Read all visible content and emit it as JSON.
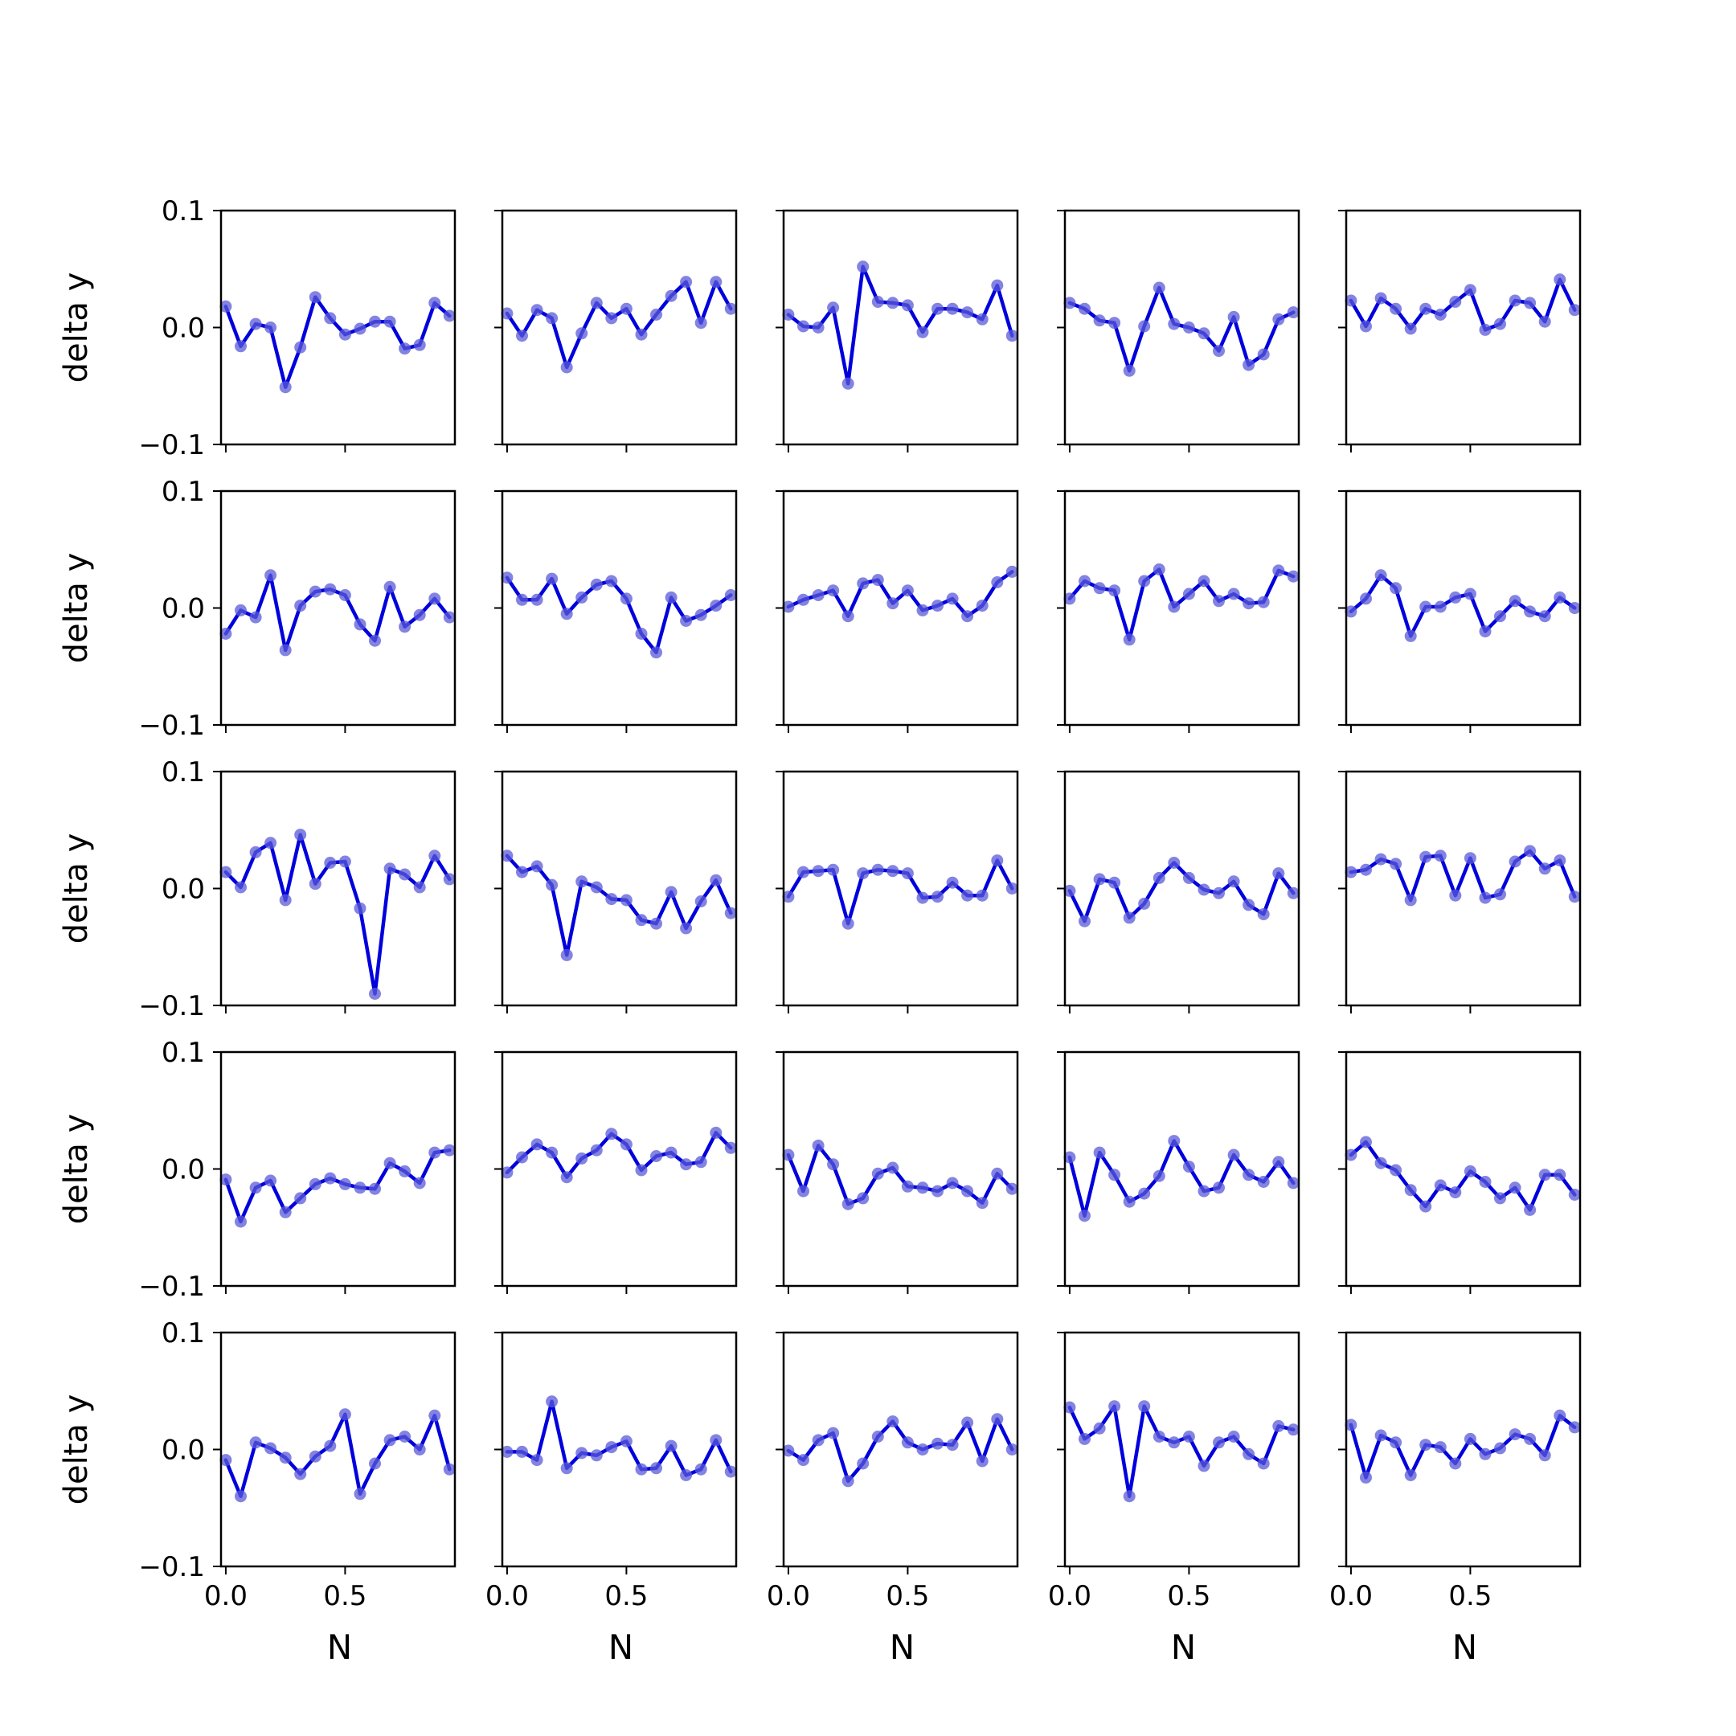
{
  "figure": {
    "rows": 5,
    "cols": 5,
    "line_color": "#0000dd",
    "marker_color": "#5a5ad8",
    "frame_color": "#000000"
  },
  "chart_data": {
    "type": "line",
    "layout": "5x5 grid of small multiples, shared x and y axes",
    "xlabel": "N",
    "ylabel": "delta y",
    "xlim": [
      -0.02,
      0.96
    ],
    "ylim": [
      -0.1,
      0.1
    ],
    "x_ticks": [
      0.0,
      0.5
    ],
    "x_tick_labels": [
      "0.0",
      "0.5"
    ],
    "y_ticks": [
      -0.1,
      0.0,
      0.1
    ],
    "y_tick_labels": [
      "−0.1",
      "0.0",
      "0.1"
    ],
    "x": [
      0.0,
      0.0625,
      0.125,
      0.1875,
      0.25,
      0.3125,
      0.375,
      0.4375,
      0.5,
      0.5625,
      0.625,
      0.6875,
      0.75,
      0.8125,
      0.875,
      0.9375
    ],
    "panels": [
      [
        [
          0.018,
          -0.016,
          0.003,
          0.0,
          -0.051,
          -0.017,
          0.026,
          0.008,
          -0.006,
          -0.001,
          0.005,
          0.005,
          -0.018,
          -0.015,
          0.021,
          0.01
        ],
        [
          0.012,
          -0.007,
          0.015,
          0.008,
          -0.034,
          -0.005,
          0.021,
          0.008,
          0.016,
          -0.006,
          0.011,
          0.027,
          0.039,
          0.004,
          0.039,
          0.016
        ],
        [
          0.011,
          0.001,
          0.0,
          0.017,
          -0.048,
          0.052,
          0.022,
          0.021,
          0.019,
          -0.004,
          0.016,
          0.016,
          0.013,
          0.007,
          0.036,
          -0.007
        ],
        [
          0.021,
          0.016,
          0.006,
          0.004,
          -0.037,
          0.001,
          0.034,
          0.003,
          0.0,
          -0.005,
          -0.02,
          0.009,
          -0.032,
          -0.023,
          0.007,
          0.013
        ],
        [
          0.023,
          0.001,
          0.025,
          0.016,
          -0.001,
          0.016,
          0.011,
          0.022,
          0.032,
          -0.002,
          0.003,
          0.023,
          0.021,
          0.005,
          0.041,
          0.015
        ]
      ],
      [
        [
          -0.022,
          -0.002,
          -0.008,
          0.028,
          -0.036,
          0.002,
          0.014,
          0.016,
          0.011,
          -0.014,
          -0.028,
          0.018,
          -0.016,
          -0.006,
          0.008,
          -0.008
        ],
        [
          0.026,
          0.007,
          0.007,
          0.025,
          -0.005,
          0.009,
          0.02,
          0.023,
          0.008,
          -0.022,
          -0.038,
          0.009,
          -0.011,
          -0.006,
          0.002,
          0.011
        ],
        [
          0.001,
          0.007,
          0.011,
          0.015,
          -0.007,
          0.021,
          0.024,
          0.004,
          0.015,
          -0.002,
          0.002,
          0.008,
          -0.007,
          0.002,
          0.022,
          0.031
        ],
        [
          0.008,
          0.023,
          0.017,
          0.015,
          -0.027,
          0.023,
          0.033,
          0.001,
          0.012,
          0.023,
          0.006,
          0.012,
          0.004,
          0.005,
          0.032,
          0.027
        ],
        [
          -0.003,
          0.008,
          0.028,
          0.017,
          -0.024,
          0.001,
          0.001,
          0.009,
          0.012,
          -0.02,
          -0.007,
          0.006,
          -0.003,
          -0.007,
          0.009,
          0.0
        ]
      ],
      [
        [
          0.014,
          0.001,
          0.031,
          0.039,
          -0.01,
          0.046,
          0.004,
          0.022,
          0.023,
          -0.017,
          -0.09,
          0.017,
          0.012,
          0.001,
          0.028,
          0.008
        ],
        [
          0.028,
          0.014,
          0.019,
          0.003,
          -0.057,
          0.006,
          0.001,
          -0.009,
          -0.01,
          -0.027,
          -0.03,
          -0.003,
          -0.034,
          -0.011,
          0.007,
          -0.021
        ],
        [
          -0.007,
          0.014,
          0.015,
          0.016,
          -0.03,
          0.013,
          0.016,
          0.015,
          0.013,
          -0.008,
          -0.007,
          0.005,
          -0.006,
          -0.006,
          0.024,
          0.0
        ],
        [
          -0.002,
          -0.028,
          0.008,
          0.005,
          -0.025,
          -0.013,
          0.009,
          0.022,
          0.009,
          -0.001,
          -0.004,
          0.006,
          -0.014,
          -0.022,
          0.013,
          -0.004
        ],
        [
          0.014,
          0.016,
          0.025,
          0.021,
          -0.01,
          0.027,
          0.028,
          -0.006,
          0.026,
          -0.008,
          -0.005,
          0.023,
          0.032,
          0.017,
          0.024,
          -0.007
        ]
      ],
      [
        [
          -0.009,
          -0.045,
          -0.016,
          -0.01,
          -0.037,
          -0.025,
          -0.013,
          -0.008,
          -0.013,
          -0.016,
          -0.017,
          0.005,
          -0.002,
          -0.012,
          0.014,
          0.016
        ],
        [
          -0.003,
          0.01,
          0.021,
          0.014,
          -0.007,
          0.009,
          0.016,
          0.03,
          0.021,
          -0.001,
          0.011,
          0.014,
          0.004,
          0.006,
          0.031,
          0.018
        ],
        [
          0.012,
          -0.019,
          0.02,
          0.004,
          -0.03,
          -0.025,
          -0.004,
          0.001,
          -0.015,
          -0.016,
          -0.019,
          -0.012,
          -0.019,
          -0.029,
          -0.004,
          -0.017
        ],
        [
          0.01,
          -0.04,
          0.014,
          -0.005,
          -0.028,
          -0.021,
          -0.006,
          0.024,
          0.002,
          -0.019,
          -0.016,
          0.012,
          -0.005,
          -0.011,
          0.006,
          -0.012
        ],
        [
          0.012,
          0.023,
          0.005,
          -0.001,
          -0.018,
          -0.032,
          -0.014,
          -0.02,
          -0.002,
          -0.011,
          -0.025,
          -0.016,
          -0.035,
          -0.005,
          -0.005,
          -0.022
        ]
      ],
      [
        [
          -0.009,
          -0.04,
          0.006,
          0.001,
          -0.007,
          -0.021,
          -0.006,
          0.003,
          0.03,
          -0.038,
          -0.012,
          0.008,
          0.011,
          0.0,
          0.029,
          -0.017
        ],
        [
          -0.002,
          -0.002,
          -0.009,
          0.041,
          -0.016,
          -0.003,
          -0.005,
          0.002,
          0.007,
          -0.017,
          -0.016,
          0.003,
          -0.022,
          -0.017,
          0.008,
          -0.019
        ],
        [
          -0.001,
          -0.009,
          0.008,
          0.014,
          -0.027,
          -0.012,
          0.011,
          0.024,
          0.006,
          0.0,
          0.005,
          0.004,
          0.023,
          -0.01,
          0.026,
          0.0
        ],
        [
          0.036,
          0.009,
          0.018,
          0.037,
          -0.04,
          0.037,
          0.011,
          0.006,
          0.011,
          -0.014,
          0.006,
          0.011,
          -0.004,
          -0.012,
          0.02,
          0.017
        ],
        [
          0.021,
          -0.024,
          0.012,
          0.006,
          -0.022,
          0.004,
          0.002,
          -0.012,
          0.009,
          -0.004,
          0.001,
          0.013,
          0.009,
          -0.005,
          0.029,
          0.019
        ]
      ]
    ]
  }
}
